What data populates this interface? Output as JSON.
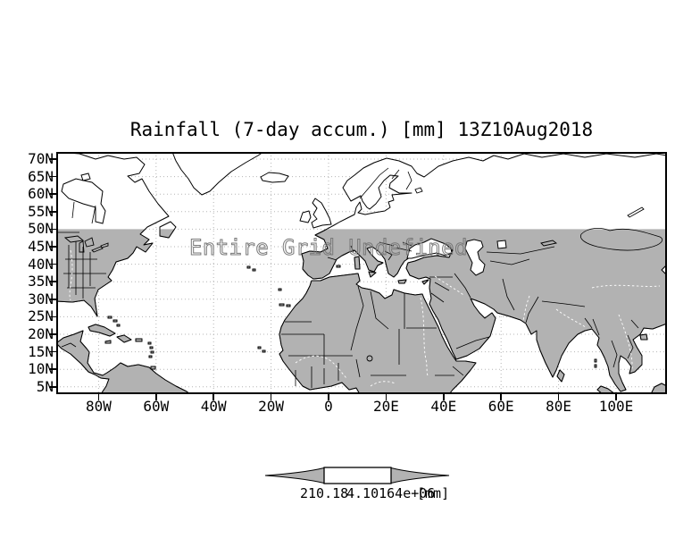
{
  "figure": {
    "title": "Rainfall (7-day accum.) [mm] 13Z10Aug2018"
  },
  "map": {
    "annotation": "Entire Grid Undefined"
  },
  "axes": {
    "lat": [
      {
        "label": "70N",
        "deg": 70
      },
      {
        "label": "65N",
        "deg": 65
      },
      {
        "label": "60N",
        "deg": 60
      },
      {
        "label": "55N",
        "deg": 55
      },
      {
        "label": "50N",
        "deg": 50
      },
      {
        "label": "45N",
        "deg": 45
      },
      {
        "label": "40N",
        "deg": 40
      },
      {
        "label": "35N",
        "deg": 35
      },
      {
        "label": "30N",
        "deg": 30
      },
      {
        "label": "25N",
        "deg": 25
      },
      {
        "label": "20N",
        "deg": 20
      },
      {
        "label": "15N",
        "deg": 15
      },
      {
        "label": "10N",
        "deg": 10
      },
      {
        "label": "5N",
        "deg": 5
      }
    ],
    "lon": [
      {
        "label": "80W",
        "deg": -80
      },
      {
        "label": "60W",
        "deg": -60
      },
      {
        "label": "40W",
        "deg": -40
      },
      {
        "label": "20W",
        "deg": -20
      },
      {
        "label": "0",
        "deg": 0
      },
      {
        "label": "20E",
        "deg": 20
      },
      {
        "label": "40E",
        "deg": 40
      },
      {
        "label": "60E",
        "deg": 60
      },
      {
        "label": "80E",
        "deg": 80
      },
      {
        "label": "100E",
        "deg": 100
      }
    ]
  },
  "colorbar": {
    "left_label": "210.18",
    "right_label": "4.10164e+06",
    "units_label": "[mm]"
  },
  "colors": {
    "land_gray": "#b2b2b2",
    "coastline": "#000000",
    "gridline": "#b5b5b5",
    "annotation_gray": "#787878",
    "background": "#ffffff"
  },
  "chart_data": {
    "type": "map",
    "title": "Rainfall (7-day accum.) [mm] 13Z10Aug2018",
    "annotation": "Entire Grid Undefined",
    "projection": "latlon",
    "lat_range": [
      3,
      72
    ],
    "lon_range": [
      -95,
      118
    ],
    "lat_ticks_deg": [
      70,
      65,
      60,
      55,
      50,
      45,
      40,
      35,
      30,
      25,
      20,
      15,
      10,
      5
    ],
    "lon_ticks_deg": [
      -80,
      -60,
      -40,
      -20,
      0,
      20,
      40,
      60,
      80,
      100
    ],
    "grid": "dotted",
    "shading": "land shaded gray south of 50N; no rainfall field plotted (entire grid undefined)",
    "colorbar": {
      "left_value": "210.18",
      "right_value": "4.10164e+06",
      "units": "[mm]"
    }
  }
}
